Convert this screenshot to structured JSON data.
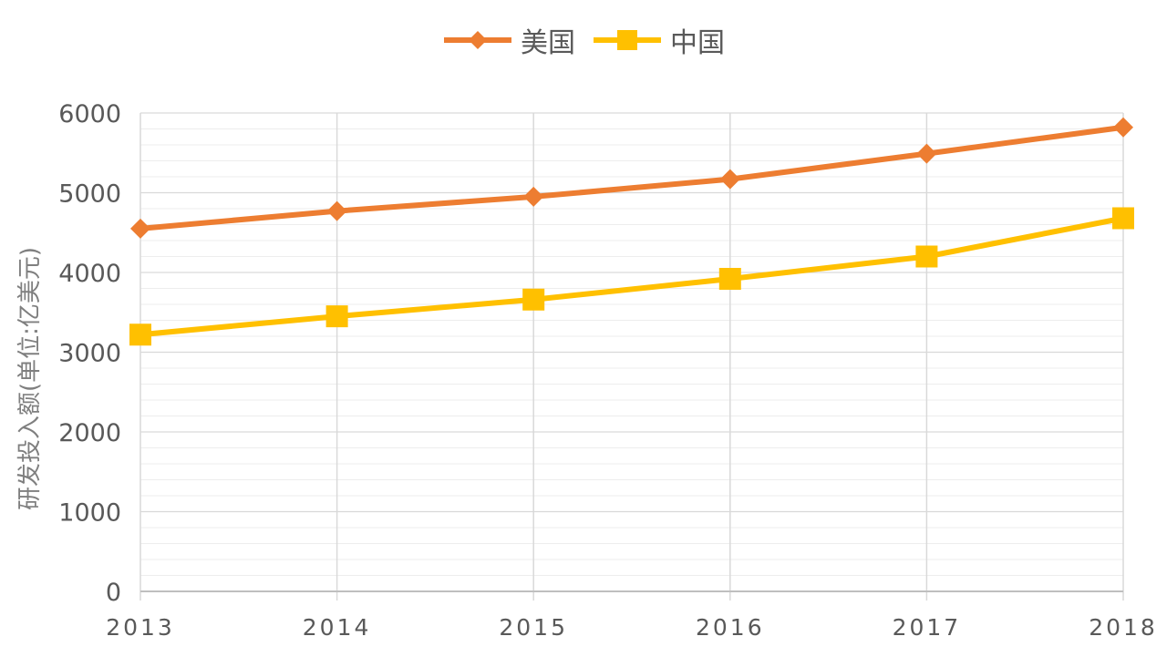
{
  "chart_data": {
    "type": "line",
    "categories": [
      "2013",
      "2014",
      "2015",
      "2016",
      "2017",
      "2018"
    ],
    "series": [
      {
        "name": "美国",
        "values": [
          4550,
          4770,
          4950,
          5170,
          5490,
          5820
        ],
        "color": "#ED7D31",
        "marker": "diamond"
      },
      {
        "name": "中国",
        "values": [
          3220,
          3450,
          3660,
          3920,
          4200,
          4680
        ],
        "color": "#FFC000",
        "marker": "square"
      }
    ],
    "title": "",
    "xlabel": "",
    "ylabel": "研发投入额(单位:亿美元)",
    "ylim": [
      0,
      6000
    ],
    "yticks": [
      "0",
      "1000",
      "2000",
      "3000",
      "4000",
      "5000",
      "6000"
    ],
    "grid": true,
    "legend": "top-center"
  }
}
